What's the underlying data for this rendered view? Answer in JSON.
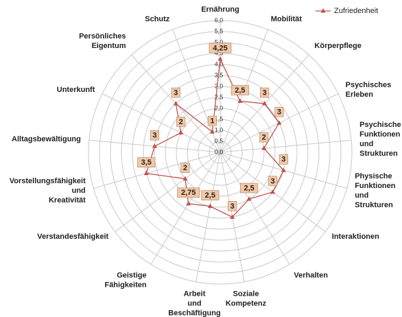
{
  "chart_data": {
    "type": "radar",
    "categories": [
      "Ernährung",
      "Mobilität",
      "Körperpflege",
      "Psychisches Erleben",
      "Psychische Funktionen und Strukturen",
      "Physische Funktionen und Strukturen",
      "Interaktionen",
      "Verhalten",
      "Soziale Kompetenz",
      "Arbeit und Beschäftigung",
      "Geistige Fähigkeiten",
      "Verstandesfähigkeit",
      "Vorstellungsfähigkeit und Kreativität",
      "Alltagsbewältigung",
      "Unterkunft",
      "Persönliches Eigentum",
      "Schutz"
    ],
    "series": [
      {
        "name": "Zufriedenheit",
        "color": "#c0504d",
        "values": [
          4.25,
          2.5,
          3,
          3,
          2,
          3,
          3,
          2.5,
          3,
          2.5,
          2.75,
          2,
          3.5,
          3,
          2,
          3,
          1
        ],
        "value_labels": [
          "4,25",
          "2,5",
          "3",
          "3",
          "2",
          "3",
          "3",
          "2,5",
          "3",
          "2,5",
          "2,75",
          "2",
          "3,5",
          "3",
          "2",
          "3",
          "1"
        ]
      }
    ],
    "ylim": [
      0,
      6
    ],
    "yticks": [
      {
        "value": 0,
        "label": "0,0"
      },
      {
        "value": 0.5,
        "label": "0,5"
      },
      {
        "value": 1,
        "label": "1,0"
      },
      {
        "value": 1.5,
        "label": "1,5"
      },
      {
        "value": 2,
        "label": "2,0"
      },
      {
        "value": 2.5,
        "label": "2,5"
      },
      {
        "value": 3,
        "label": "3,0"
      },
      {
        "value": 3.5,
        "label": "3,5"
      },
      {
        "value": 4,
        "label": "4,0"
      },
      {
        "value": 4.5,
        "label": "4,5"
      },
      {
        "value": 5,
        "label": "5,0"
      },
      {
        "value": 5.5,
        "label": "5,5"
      },
      {
        "value": 6,
        "label": "6,0"
      }
    ],
    "grid": true,
    "legend": "top-right"
  }
}
